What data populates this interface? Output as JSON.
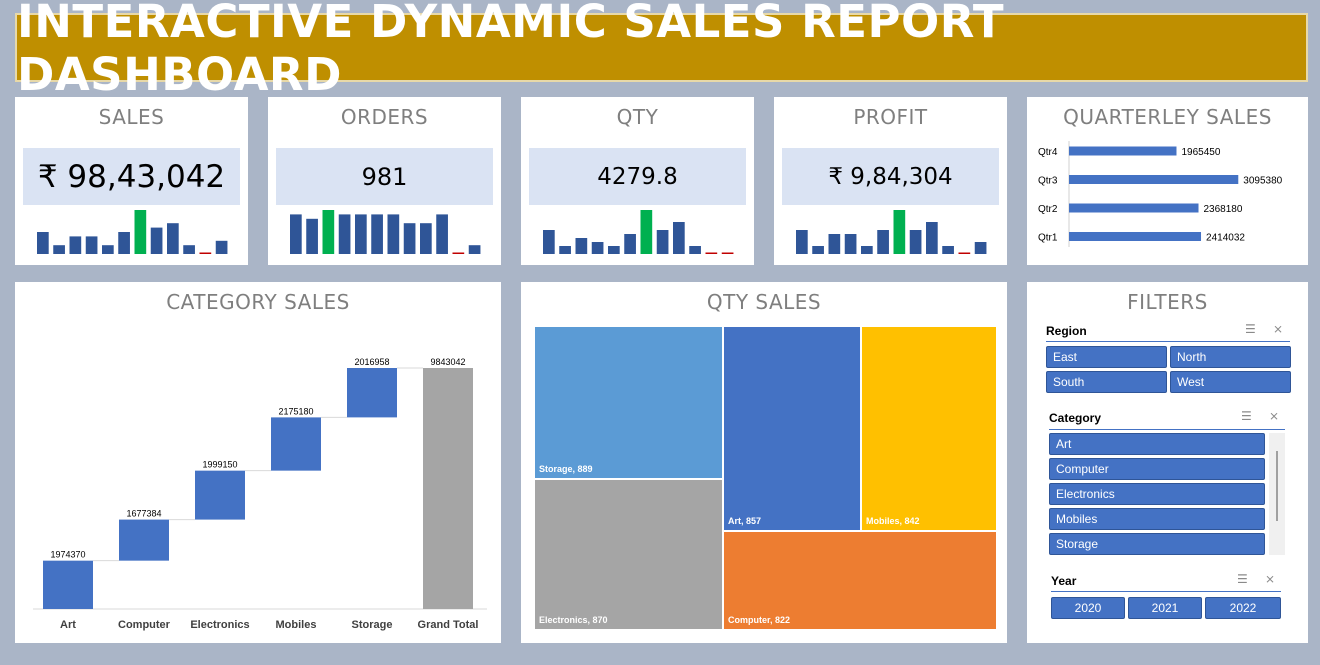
{
  "title": "INTERACTIVE DYNAMIC SALES REPORT DASHBOARD",
  "kpis": {
    "sales": {
      "title": "SALES",
      "value": "₹ 98,43,042",
      "bars": [
        5,
        2,
        4,
        4,
        2,
        5,
        10,
        6,
        7,
        2,
        0,
        3
      ]
    },
    "orders": {
      "title": "ORDERS",
      "value": "981",
      "bars": [
        9,
        8,
        10,
        9,
        9,
        9,
        9,
        7,
        7,
        9,
        0,
        2
      ]
    },
    "qty": {
      "title": "QTY",
      "value": "4279.8",
      "bars": [
        6,
        2,
        4,
        3,
        2,
        5,
        11,
        6,
        8,
        2,
        0,
        0
      ]
    },
    "profit": {
      "title": "PROFIT",
      "value": "₹ 9,84,304",
      "bars": [
        6,
        2,
        5,
        5,
        2,
        6,
        11,
        6,
        8,
        2,
        0,
        3
      ]
    }
  },
  "quarterly": {
    "title": "QUARTERLEY SALES",
    "rows": [
      {
        "label": "Qtr4",
        "value": 1965450,
        "value_label": "1965450"
      },
      {
        "label": "Qtr3",
        "value": 3095380,
        "value_label": "3095380"
      },
      {
        "label": "Qtr2",
        "value": 2368180,
        "value_label": "2368180"
      },
      {
        "label": "Qtr1",
        "value": 2414032,
        "value_label": "2414032"
      }
    ]
  },
  "category_sales": {
    "title": "CATEGORY SALES",
    "categories": [
      "Art",
      "Computer",
      "Electronics",
      "Mobiles",
      "Storage",
      "Grand Total"
    ],
    "values": [
      1974370,
      1677384,
      1999150,
      2175180,
      2016958,
      9843042
    ],
    "value_labels": [
      "1974370",
      "1677384",
      "1999150",
      "2175180",
      "2016958",
      "9843042"
    ]
  },
  "qty_sales": {
    "title": "QTY SALES",
    "tiles": [
      {
        "label": "Storage, 889",
        "color": "#5b9bd5"
      },
      {
        "label": "Electronics, 870",
        "color": "#a5a5a5"
      },
      {
        "label": "Art, 857",
        "color": "#4472c4"
      },
      {
        "label": "Mobiles, 842",
        "color": "#ffc000"
      },
      {
        "label": "Computer, 822",
        "color": "#ed7d31"
      }
    ]
  },
  "filters": {
    "title": "FILTERS",
    "region": {
      "label": "Region",
      "options": [
        "East",
        "North",
        "South",
        "West"
      ]
    },
    "category": {
      "label": "Category",
      "options": [
        "Art",
        "Computer",
        "Electronics",
        "Mobiles",
        "Storage"
      ]
    },
    "year": {
      "label": "Year",
      "options": [
        "2020",
        "2021",
        "2022"
      ]
    }
  },
  "chart_data": [
    {
      "type": "bar",
      "title": "QUARTERLEY SALES",
      "categories": [
        "Qtr4",
        "Qtr3",
        "Qtr2",
        "Qtr1"
      ],
      "values": [
        1965450,
        3095380,
        2368180,
        2414032
      ]
    },
    {
      "type": "bar",
      "title": "CATEGORY SALES",
      "categories": [
        "Art",
        "Computer",
        "Electronics",
        "Mobiles",
        "Storage",
        "Grand Total"
      ],
      "values": [
        1974370,
        1677384,
        1999150,
        2175180,
        2016958,
        9843042
      ]
    },
    {
      "type": "table",
      "title": "QTY SALES",
      "categories": [
        "Storage",
        "Electronics",
        "Art",
        "Mobiles",
        "Computer"
      ],
      "values": [
        889,
        870,
        857,
        842,
        822
      ]
    }
  ],
  "colors": {
    "banner": "#bf8f00",
    "bar": "#2f5597",
    "highlight": "#00b050",
    "minimum": "#c00000",
    "accent": "#4472c4",
    "total": "#a5a5a5"
  }
}
